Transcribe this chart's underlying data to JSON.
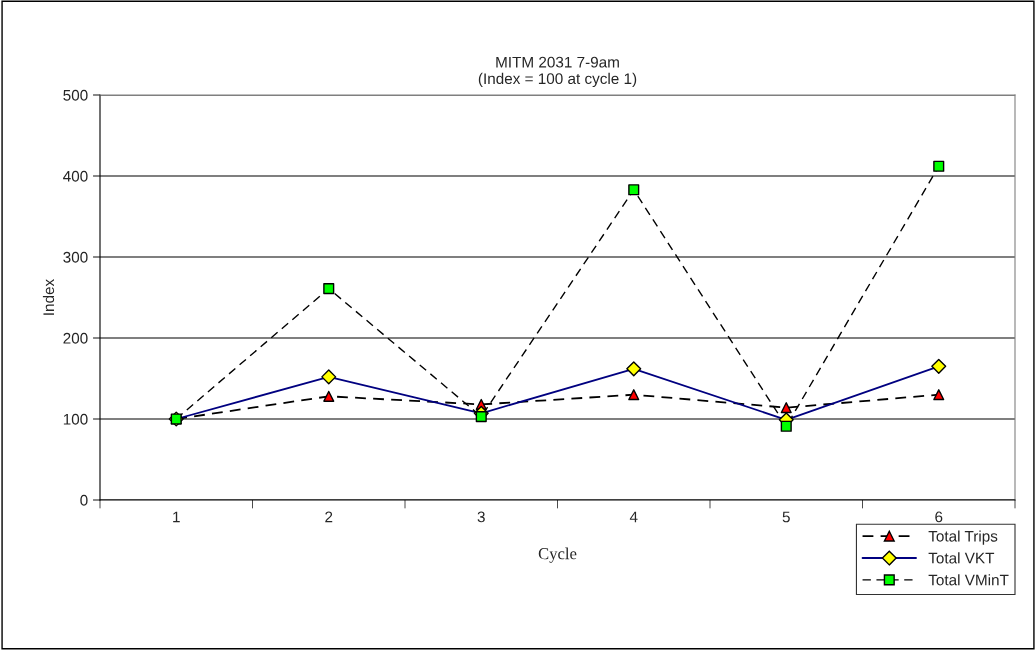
{
  "chart_data": {
    "type": "line",
    "title": "MITM 2031 7-9am\n(Index = 100 at cycle 1)",
    "xlabel": "Cycle",
    "ylabel": "Index",
    "categories": [
      "1",
      "2",
      "3",
      "4",
      "5",
      "6"
    ],
    "series": [
      {
        "name": "Total Trips",
        "color": "#000000",
        "colors": [
          "#ff0000",
          "#ff0000",
          "#ff0000",
          "#ff0000",
          "#ff0000",
          "#ff0000"
        ],
        "marker": "triangle",
        "line_style": "dashed",
        "values": [
          100,
          128,
          118,
          130,
          114,
          130
        ]
      },
      {
        "name": "Total VKT",
        "color": "#000080",
        "colors": [
          "#ffff00",
          "#ffff00",
          "#ffff00",
          "#ffff00",
          "#ffff00",
          "#ffff00"
        ],
        "marker": "diamond",
        "line_style": "solid",
        "values": [
          100,
          152,
          107,
          162,
          99,
          165
        ]
      },
      {
        "name": "Total VMinT",
        "color": "#000000",
        "colors": [
          "#00ff00",
          "#00ff00",
          "#00ff00",
          "#00ff00",
          "#00ff00",
          "#00ff00"
        ],
        "marker": "square",
        "line_style": "dashed",
        "values": [
          100,
          261,
          103,
          383,
          91,
          412
        ]
      }
    ],
    "ylim": [
      0,
      500
    ],
    "yticks": [
      0,
      100,
      200,
      300,
      400,
      500
    ],
    "grid": "y",
    "legend": "bottom right"
  }
}
